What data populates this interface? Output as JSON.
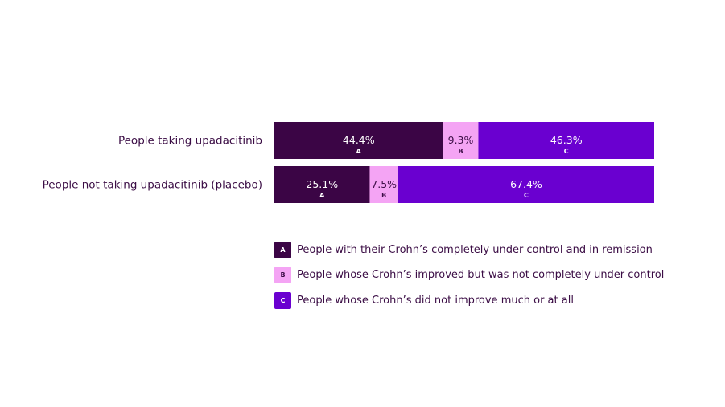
{
  "chart_data": {
    "type": "bar",
    "orientation": "horizontal",
    "stacked": true,
    "categories": [
      "People taking upadacitinib",
      "People not taking upadacitinib (placebo)"
    ],
    "xlim": [
      0,
      100
    ],
    "grid": false,
    "legend_position": "bottom",
    "series": [
      {
        "key": "A",
        "name": "People with their Crohn’s completely under control and in remission",
        "values": [
          44.4,
          25.1
        ],
        "labels": [
          "44.4%",
          "25.1%"
        ],
        "color": "#3b0545",
        "text_color": "#ffffff"
      },
      {
        "key": "B",
        "name": "People whose Crohn’s improved but was not completely under control",
        "values": [
          9.3,
          7.5
        ],
        "labels": [
          "9.3%",
          "7.5%"
        ],
        "color": "#f4a4f4",
        "text_color": "#3b0d45"
      },
      {
        "key": "C",
        "name": "People whose Crohn’s did not improve much or at all",
        "values": [
          46.3,
          67.4
        ],
        "labels": [
          "46.3%",
          "67.4%"
        ],
        "color": "#6a00d0",
        "text_color": "#ffffff"
      }
    ]
  }
}
